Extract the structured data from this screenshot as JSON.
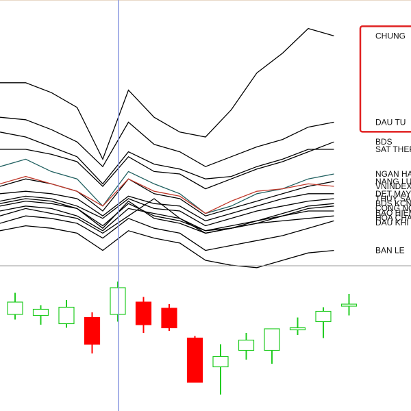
{
  "colors": {
    "background": "#ffffff",
    "sector_line": "#000000",
    "index_line": "#c0392b",
    "bank_line": "#1f5f5f",
    "crosshair": "#8a99e0",
    "highlight_box": "#e02020",
    "candle_up": "#22cc22",
    "candle_down": "#ff0000",
    "divider": "#999999"
  },
  "chart_data": [
    {
      "type": "line",
      "title": "",
      "xlabel": "",
      "ylabel": "",
      "grid": false,
      "legend": "right, labels at line ends",
      "x": [
        1,
        2,
        3,
        4,
        5,
        6,
        7,
        8,
        9,
        10,
        11,
        12,
        13,
        14
      ],
      "ylim": [
        0,
        100
      ],
      "series": [
        {
          "name": "CHUNG",
          "color": "#000000",
          "values": [
            72,
            72,
            68,
            62,
            41,
            69,
            58,
            52,
            50,
            61,
            76,
            84,
            94,
            91
          ]
        },
        {
          "name": "DAU TU",
          "color": "#000000",
          "values": [
            58,
            57,
            53,
            48,
            38,
            56,
            47,
            44,
            38,
            42,
            46,
            49,
            54,
            56
          ]
        },
        {
          "name": "BDS",
          "color": "#000000",
          "values": [
            45,
            45,
            43,
            40,
            30,
            42,
            36,
            35,
            29,
            33,
            37,
            40,
            44,
            48
          ]
        },
        {
          "name": "SAT THEP",
          "color": "#000000",
          "values": [
            52,
            50,
            46,
            42,
            31,
            44,
            39,
            37,
            33,
            34,
            38,
            41,
            45,
            45
          ]
        },
        {
          "name": "NGAN HANG",
          "color": "#1f5f5f",
          "values": [
            38,
            41,
            36,
            33,
            22,
            36,
            31,
            27,
            19,
            22,
            27,
            29,
            33,
            35
          ]
        },
        {
          "name": "NANG LUONG",
          "color": "#000000",
          "values": [
            30,
            33,
            31,
            28,
            20,
            33,
            27,
            25,
            18,
            21,
            24,
            27,
            30,
            32
          ]
        },
        {
          "name": "VNINDEX",
          "color": "#c0392b",
          "values": [
            31,
            34,
            31,
            28,
            22,
            33,
            28,
            26,
            19,
            24,
            28,
            29,
            31,
            30
          ]
        },
        {
          "name": "DET MAY",
          "color": "#000000",
          "values": [
            27,
            28,
            27,
            25,
            18,
            26,
            23,
            22,
            16,
            19,
            22,
            25,
            27,
            27
          ]
        },
        {
          "name": "THUY SAN",
          "color": "#000000",
          "values": [
            24,
            26,
            25,
            22,
            17,
            25,
            21,
            20,
            14,
            17,
            20,
            22,
            24,
            25
          ]
        },
        {
          "name": "BDS KCN",
          "color": "#000000",
          "values": [
            22,
            24,
            23,
            21,
            14,
            23,
            18,
            16,
            12,
            14,
            16,
            19,
            22,
            23
          ]
        },
        {
          "name": "CONG NGHE",
          "color": "#000000",
          "values": [
            23,
            25,
            24,
            21,
            13,
            24,
            17,
            15,
            11,
            13,
            15,
            18,
            21,
            22
          ]
        },
        {
          "name": "BAO HIEM",
          "color": "#000000",
          "values": [
            20,
            22,
            21,
            18,
            12,
            21,
            19,
            17,
            11,
            13,
            16,
            18,
            20,
            20
          ]
        },
        {
          "name": "HOA CHAT",
          "color": "#000000",
          "values": [
            18,
            21,
            19,
            17,
            11,
            18,
            25,
            17,
            12,
            13,
            15,
            16,
            17,
            18
          ]
        },
        {
          "name": "DAU KHI",
          "color": "#000000",
          "values": [
            15,
            18,
            17,
            15,
            9,
            17,
            13,
            11,
            4,
            6,
            8,
            10,
            13,
            16
          ]
        },
        {
          "name": "BAN LE",
          "color": "#000000",
          "values": [
            12,
            14,
            13,
            11,
            4,
            12,
            9,
            7,
            0,
            -2,
            -3,
            0,
            3,
            4
          ]
        }
      ]
    },
    {
      "type": "candlestick",
      "title": "",
      "grid": false,
      "ylim": [
        0,
        100
      ],
      "candles": [
        {
          "open": 74,
          "close": 86,
          "high": 95,
          "low": 69
        },
        {
          "open": 73,
          "close": 79,
          "high": 83,
          "low": 64
        },
        {
          "open": 65,
          "close": 81,
          "high": 88,
          "low": 61
        },
        {
          "open": 71,
          "close": 45,
          "high": 76,
          "low": 36
        },
        {
          "open": 74,
          "close": 100,
          "high": 106,
          "low": 67
        },
        {
          "open": 86,
          "close": 64,
          "high": 91,
          "low": 56
        },
        {
          "open": 80,
          "close": 61,
          "high": 84,
          "low": 58
        },
        {
          "open": 51,
          "close": 8,
          "high": 53,
          "low": 8
        },
        {
          "open": 23,
          "close": 33,
          "high": 45,
          "low": -4
        },
        {
          "open": 39,
          "close": 49,
          "high": 56,
          "low": 30
        },
        {
          "open": 39,
          "close": 60,
          "high": 60,
          "low": 26
        },
        {
          "open": 61,
          "close": 61,
          "high": 71,
          "low": 54
        },
        {
          "open": 67,
          "close": 77,
          "high": 81,
          "low": 51
        },
        {
          "open": 84,
          "close": 84,
          "high": 94,
          "low": 73
        }
      ]
    }
  ]
}
